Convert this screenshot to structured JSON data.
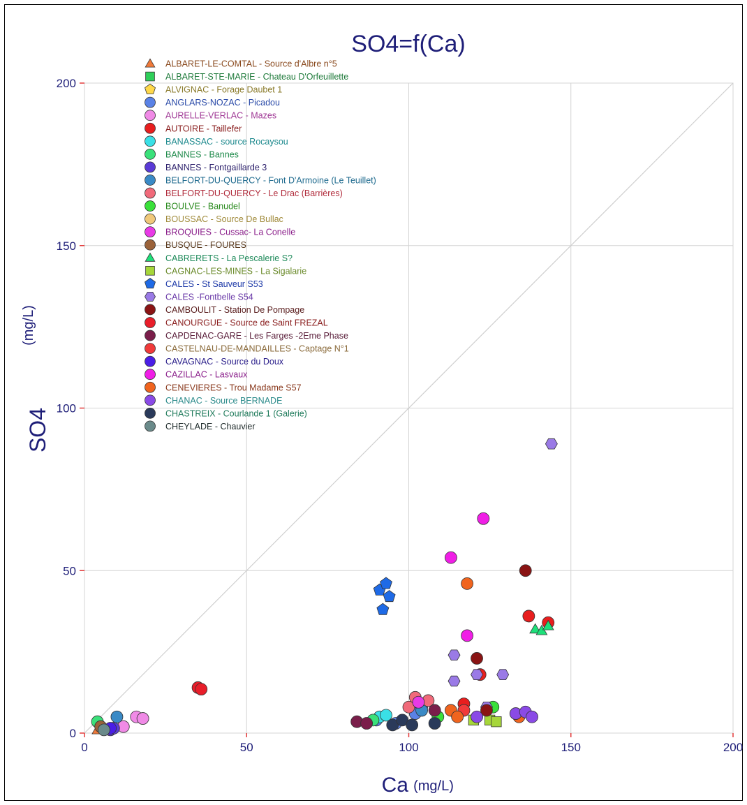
{
  "chart_data": {
    "type": "scatter",
    "title": "SO4=f(Ca)",
    "xlabel": {
      "main": "Ca",
      "unit": "(mg/L)"
    },
    "ylabel": {
      "main": "SO4",
      "unit": "(mg/L)"
    },
    "xlim": [
      0,
      200
    ],
    "ylim": [
      0,
      200
    ],
    "xticks": [
      "0",
      "50",
      "100",
      "150",
      "200"
    ],
    "yticks": [
      "0",
      "50",
      "100",
      "150",
      "200"
    ],
    "grid": true,
    "reference_line": "y = x",
    "legend_position": "top-left",
    "series": [
      {
        "name": "ALBARET-LE-COMTAL - Source d'Albre n°5",
        "color": "#f07a3a",
        "shape": "triangle",
        "label_color": "#8a4a1e",
        "points": [
          [
            4,
            1
          ]
        ]
      },
      {
        "name": "ALBARET-STE-MARIE - Chateau D'Orfeuillette",
        "color": "#2fcf5a",
        "shape": "square",
        "label_color": "#1e7a3a",
        "points": []
      },
      {
        "name": "ALVIGNAC - Forage Daubet 1",
        "color": "#ffd84a",
        "shape": "pentagon",
        "label_color": "#8a7a2a",
        "points": []
      },
      {
        "name": "ANGLARS-NOZAC - Picadou",
        "color": "#5a82e6",
        "shape": "circle",
        "label_color": "#2a4aa8",
        "points": [
          [
            90,
            4
          ],
          [
            96,
            3
          ],
          [
            102,
            6
          ],
          [
            104,
            8
          ]
        ]
      },
      {
        "name": "AURELLE-VERLAC - Mazes",
        "color": "#f08ae6",
        "shape": "circle",
        "label_color": "#a03a96",
        "points": [
          [
            12,
            2
          ],
          [
            16,
            5
          ],
          [
            18,
            4.5
          ]
        ]
      },
      {
        "name": "AUTOIRE - Taillefer",
        "color": "#e81e1e",
        "shape": "circle",
        "label_color": "#8a1e1e",
        "points": [
          [
            117,
            9
          ],
          [
            122,
            18
          ],
          [
            137,
            36
          ],
          [
            143,
            34
          ]
        ]
      },
      {
        "name": "BANASSAC - source Rocaysou",
        "color": "#3ae0e6",
        "shape": "circle",
        "label_color": "#1e8a8e",
        "points": [
          [
            91,
            5
          ],
          [
            93,
            5.5
          ]
        ]
      },
      {
        "name": "BANNES - Bannes",
        "color": "#3ae07a",
        "shape": "circle",
        "label_color": "#1e8a4a",
        "points": [
          [
            4,
            3.5
          ],
          [
            89,
            4
          ]
        ]
      },
      {
        "name": "BANNES - Fontgaillarde 3",
        "color": "#5a3ad6",
        "shape": "circle",
        "label_color": "#2a1e6a",
        "points": [
          [
            8,
            1
          ],
          [
            9,
            1.5
          ]
        ]
      },
      {
        "name": "BELFORT-DU-QUERCY - Font D'Armoine  (Le Teuillet)",
        "color": "#3a8ac6",
        "shape": "circle",
        "label_color": "#1e6a8e",
        "points": [
          [
            10,
            5
          ],
          [
            104,
            7
          ]
        ]
      },
      {
        "name": "BELFORT-DU-QUERCY - Le Drac (Barrières)",
        "color": "#f06a7a",
        "shape": "circle",
        "label_color": "#b02a3a",
        "points": [
          [
            100,
            8
          ],
          [
            102,
            11
          ],
          [
            106,
            10
          ]
        ]
      },
      {
        "name": "BOULVE - Banudel",
        "color": "#3ae03a",
        "shape": "circle",
        "label_color": "#2a8a1e",
        "points": [
          [
            109,
            5
          ],
          [
            126,
            8
          ]
        ]
      },
      {
        "name": "BOUSSAC - Source De Bullac",
        "color": "#f0c87a",
        "shape": "circle",
        "label_color": "#a08a3a",
        "points": []
      },
      {
        "name": "BROQUIES - Cussac- La Conelle",
        "color": "#e83ae6",
        "shape": "circle",
        "label_color": "#8a1e8a",
        "points": [
          [
            103,
            9.5
          ]
        ]
      },
      {
        "name": "BUSQUE - FOURES",
        "color": "#9a623a",
        "shape": "circle",
        "label_color": "#5a3a1e",
        "points": [
          [
            5,
            2
          ]
        ]
      },
      {
        "name": "CABRERETS - La Pescalerie S?",
        "color": "#1ee07a",
        "shape": "triangle",
        "label_color": "#1e8a5a",
        "points": [
          [
            139,
            32
          ],
          [
            141,
            31.5
          ],
          [
            143,
            33
          ]
        ]
      },
      {
        "name": "CAGNAC-LES-MINES - La Sigalarie",
        "color": "#a6d63a",
        "shape": "square",
        "label_color": "#6a8a2a",
        "points": [
          [
            120,
            4
          ],
          [
            125,
            4
          ],
          [
            127,
            3.5
          ]
        ]
      },
      {
        "name": "CALES - St Sauveur S53",
        "color": "#1e6ae6",
        "shape": "pentagon",
        "label_color": "#1e3aa8",
        "points": [
          [
            91,
            44
          ],
          [
            93,
            46
          ],
          [
            94,
            42
          ],
          [
            92,
            38
          ]
        ]
      },
      {
        "name": "CALES -Fontbelle S54",
        "color": "#9a7ae6",
        "shape": "hexagon",
        "label_color": "#6a3aa8",
        "points": [
          [
            144,
            89
          ],
          [
            114,
            24
          ],
          [
            114,
            16
          ],
          [
            121,
            18
          ],
          [
            129,
            18
          ],
          [
            124,
            8
          ]
        ]
      },
      {
        "name": "CAMBOULIT - Station De Pompage",
        "color": "#8a1414",
        "shape": "circle",
        "label_color": "#5a1e1e",
        "points": [
          [
            136,
            50
          ],
          [
            121,
            23
          ],
          [
            124,
            7
          ]
        ]
      },
      {
        "name": "CANOURGUE - Source de Saint FREZAL",
        "color": "#e81e2a",
        "shape": "circle",
        "label_color": "#8a1e1e",
        "points": [
          [
            35,
            14
          ],
          [
            36,
            13.5
          ]
        ]
      },
      {
        "name": "CAPDENAC-GARE - Les Farges  -2Eme Phase",
        "color": "#7a1e4a",
        "shape": "circle",
        "label_color": "#5a1e3a",
        "points": [
          [
            84,
            3.5
          ],
          [
            87,
            3
          ],
          [
            108,
            7
          ]
        ]
      },
      {
        "name": "CASTELNAU-DE-MANDAILLES - Captage N°1",
        "color": "#f03a3a",
        "shape": "circle",
        "label_color": "#8a6a3a",
        "points": [
          [
            117,
            7
          ]
        ]
      },
      {
        "name": "CAVAGNAC - Source du Doux",
        "color": "#4a1ee6",
        "shape": "circle",
        "label_color": "#2a1e8a",
        "points": [
          [
            8,
            1.5
          ]
        ]
      },
      {
        "name": "CAZILLAC - Lasvaux",
        "color": "#f01ee6",
        "shape": "circle",
        "label_color": "#8a1e8a",
        "points": [
          [
            113,
            54
          ],
          [
            123,
            66
          ],
          [
            118,
            30
          ]
        ]
      },
      {
        "name": "CENEVIERES - Trou Madame S57",
        "color": "#f0641e",
        "shape": "circle",
        "label_color": "#8a3a1e",
        "points": [
          [
            118,
            46
          ],
          [
            113,
            7
          ],
          [
            115,
            5
          ],
          [
            134,
            5
          ]
        ]
      },
      {
        "name": "CHANAC - Source BERNADE",
        "color": "#8a4ae6",
        "shape": "circle",
        "label_color": "#2a8a8a",
        "points": [
          [
            121,
            5
          ],
          [
            133,
            6
          ],
          [
            136,
            6.5
          ],
          [
            138,
            5
          ]
        ]
      },
      {
        "name": "CHASTREIX - Courlande 1 (Galerie)",
        "color": "#2a3a5a",
        "shape": "circle",
        "label_color": "#1e7a5a",
        "points": [
          [
            95,
            2.5
          ],
          [
            98,
            4
          ],
          [
            101,
            2.5
          ],
          [
            108,
            3
          ]
        ]
      },
      {
        "name": "CHEYLADE - Chauvier",
        "color": "#6a8a8a",
        "shape": "circle",
        "label_color": "#1e2a2a",
        "points": [
          [
            6,
            1
          ]
        ]
      }
    ]
  }
}
